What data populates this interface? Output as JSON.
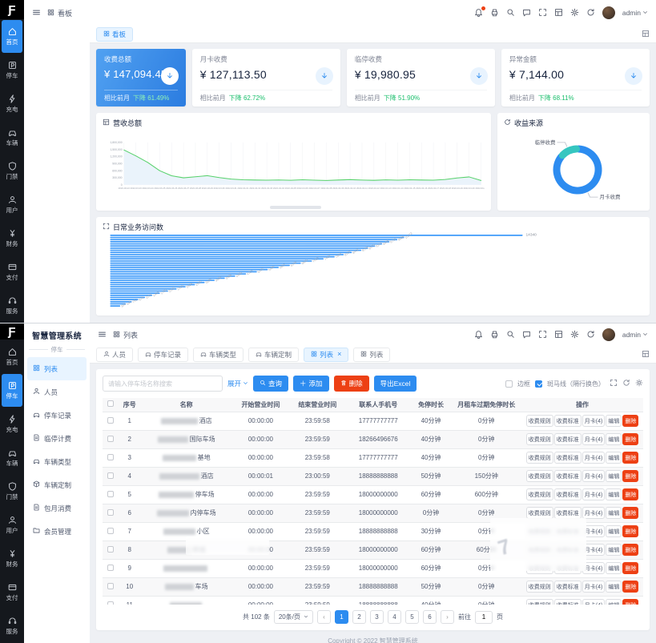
{
  "brand": {
    "logo_glyph": "Ƒ",
    "accent": "#2d8cf0",
    "danger": "#ed4014",
    "success": "#19be6b"
  },
  "rail": {
    "items": [
      {
        "icon": "home",
        "label": "首页"
      },
      {
        "icon": "parking",
        "label": "停车"
      },
      {
        "icon": "bolt",
        "label": "充电"
      },
      {
        "icon": "car",
        "label": "车辆"
      },
      {
        "icon": "shield",
        "label": "门禁"
      },
      {
        "icon": "user",
        "label": "用户"
      },
      {
        "icon": "yen",
        "label": "财务"
      },
      {
        "icon": "card",
        "label": "支付"
      },
      {
        "icon": "headset",
        "label": "服务"
      }
    ]
  },
  "topbar_icons": [
    "bell",
    "printer",
    "search",
    "message",
    "expand",
    "layout",
    "gear",
    "refresh"
  ],
  "user": {
    "name": "admin"
  },
  "top_view": {
    "breadcrumb": "看板",
    "tab": "看板",
    "cards": [
      {
        "title": "收费总额",
        "value": "¥ 147,094.45",
        "compare": "相比前月",
        "trend": "下降 61.49%",
        "highlight": true
      },
      {
        "title": "月卡收费",
        "value": "¥ 127,113.50",
        "compare": "相比前月",
        "trend": "下降 62.72%",
        "highlight": false
      },
      {
        "title": "临停收费",
        "value": "¥ 19,980.95",
        "compare": "相比前月",
        "trend": "下降 51.90%",
        "highlight": false
      },
      {
        "title": "异常金额",
        "value": "¥ 7,144.00",
        "compare": "相比前月",
        "trend": "下降 68.11%",
        "highlight": false
      }
    ],
    "line_panel_title": "营收总额",
    "donut_panel_title": "收益来源",
    "bar_panel_title": "日常业务访问数"
  },
  "chart_data": [
    {
      "type": "line",
      "title": "营收总额",
      "x": [
        "2022-03-22",
        "2022-03-23",
        "2022-03-24",
        "2022-03-25",
        "2022-03-26",
        "2022-03-27",
        "2022-03-28",
        "2022-03-29",
        "2022-03-30",
        "2022-03-31",
        "2022-04-01",
        "2022-04-02",
        "2022-04-03",
        "2022-04-04",
        "2022-04-05",
        "2022-04-06",
        "2022-04-07",
        "2022-04-08",
        "2022-04-09",
        "2022-04-10",
        "2022-04-11",
        "2022-04-12",
        "2022-04-13",
        "2022-04-14",
        "2022-04-15",
        "2022-04-16",
        "2022-04-17",
        "2022-04-18",
        "2022-04-19",
        "2022-04-20",
        "2022-04-21"
      ],
      "values": [
        1480000,
        1230000,
        950000,
        600000,
        385000,
        300000,
        345000,
        390000,
        310000,
        245000,
        215000,
        205000,
        198000,
        208000,
        195000,
        215000,
        200000,
        188000,
        206000,
        224000,
        204000,
        192000,
        212000,
        198000,
        216000,
        206000,
        198000,
        228000,
        292000,
        338000,
        185000
      ],
      "ylim": [
        0,
        1800000
      ],
      "yticks": [
        0,
        300000,
        600000,
        900000,
        1200000,
        1500000,
        1800000
      ],
      "line_color": "#57d16b",
      "area_color": "#eaf3fb",
      "grid": "vertical"
    },
    {
      "type": "pie",
      "title": "收益来源",
      "slices": [
        {
          "label": "月卡收费",
          "value": 127113.5,
          "color": "#2d8cf0"
        },
        {
          "label": "临停收费",
          "value": 19980.95,
          "color": "#36c6c0"
        }
      ],
      "donut": true,
      "legend_position": "callout-labels"
    },
    {
      "type": "bar",
      "orientation": "horizontal",
      "title": "日常业务访问数",
      "values": [
        14340,
        10223,
        9986,
        9712,
        9455,
        9214,
        8970,
        8733,
        8402,
        8120,
        7804,
        7420,
        7015,
        6630,
        6248,
        5861,
        5480,
        5102,
        4725,
        4350,
        3988,
        3630,
        3285,
        2950,
        2624,
        2310,
        2012,
        1730,
        1465,
        1212,
        975,
        752,
        545,
        352
      ],
      "bar_color": "#3f9bfa",
      "value_labels": "rotated-at-bar-end",
      "xlabel": "",
      "ylabel": ""
    }
  ],
  "bottom_view": {
    "app_title": "智慧管理系统",
    "module": "停车",
    "menu": [
      {
        "icon": "grid",
        "label": "列表",
        "active": true
      },
      {
        "icon": "user",
        "label": "人员",
        "active": false
      },
      {
        "icon": "car",
        "label": "停车记录",
        "active": false
      },
      {
        "icon": "file",
        "label": "临停计费",
        "active": false
      },
      {
        "icon": "car",
        "label": "车辆类型",
        "active": false
      },
      {
        "icon": "box",
        "label": "车辆定制",
        "active": false
      },
      {
        "icon": "file",
        "label": "包月消费",
        "active": false
      },
      {
        "icon": "folder",
        "label": "会员管理",
        "active": false
      }
    ],
    "breadcrumb": "列表",
    "tabs": [
      {
        "icon": "user",
        "label": "人员",
        "active": false,
        "closable": false
      },
      {
        "icon": "car",
        "label": "停车记录",
        "active": false,
        "closable": false
      },
      {
        "icon": "car",
        "label": "车辆类型",
        "active": false,
        "closable": false
      },
      {
        "icon": "car",
        "label": "车辆定制",
        "active": false,
        "closable": false
      },
      {
        "icon": "grid",
        "label": "列表",
        "active": true,
        "closable": true
      },
      {
        "icon": "grid",
        "label": "列表",
        "active": false,
        "closable": false
      }
    ],
    "toolbar": {
      "search_placeholder": "请输入停车场名称搜索",
      "expand_label": "展开",
      "query_label": "查询",
      "add_label": "添加",
      "delete_label": "删除",
      "export_label": "导出Excel",
      "border_label": "边框",
      "stripe_label": "斑马线（隔行换色）"
    },
    "table": {
      "columns": [
        "序号",
        "名称",
        "开始营业时间",
        "结束营业时间",
        "联系人手机号",
        "免停时长",
        "月租车过期免停时长",
        "操作"
      ],
      "row_actions": [
        "收费规则",
        "收费标准",
        "月卡(4)",
        "编辑"
      ],
      "delete_action": "删除",
      "rows": [
        {
          "no": "1",
          "name_suffix": "酒店",
          "blur_w": 46,
          "open": "00:00:00",
          "close": "23:59:58",
          "phone": "17777777777",
          "free": "40分钟",
          "monthly_free": "0分钟"
        },
        {
          "no": "2",
          "name_suffix": "国际车场",
          "blur_w": 38,
          "open": "00:00:00",
          "close": "23:59:59",
          "phone": "18266496676",
          "free": "40分钟",
          "monthly_free": "0分钟"
        },
        {
          "no": "3",
          "name_suffix": "基地",
          "blur_w": 42,
          "open": "00:00:00",
          "close": "23:59:58",
          "phone": "17777777777",
          "free": "40分钟",
          "monthly_free": "0分钟"
        },
        {
          "no": "4",
          "name_suffix": "酒店",
          "blur_w": 50,
          "open": "00:00:01",
          "close": "23:00:59",
          "phone": "18888888888",
          "free": "50分钟",
          "monthly_free": "150分钟"
        },
        {
          "no": "5",
          "name_suffix": "停车场",
          "blur_w": 44,
          "open": "00:00:00",
          "close": "23:59:59",
          "phone": "18000000000",
          "free": "60分钟",
          "monthly_free": "600分钟"
        },
        {
          "no": "6",
          "name_suffix": "内停车场",
          "blur_w": 40,
          "open": "00:00:00",
          "close": "23:59:59",
          "phone": "18000000000",
          "free": "0分钟",
          "monthly_free": "0分钟"
        },
        {
          "no": "7",
          "name_suffix": "小区",
          "blur_w": 40,
          "open": "00:00:00",
          "close": "23:59:59",
          "phone": "18888888888",
          "free": "30分钟",
          "monthly_free": "0分钟"
        },
        {
          "no": "8",
          "name_suffix": "新城",
          "blur_w": 30,
          "open": "00:00:00",
          "close": "23:59:59",
          "phone": "18000000000",
          "free": "60分钟",
          "monthly_free": "60分钟"
        },
        {
          "no": "9",
          "name_suffix": "",
          "blur_w": 55,
          "open": "00:00:00",
          "close": "23:59:59",
          "phone": "18000000000",
          "free": "60分钟",
          "monthly_free": "0分钟"
        },
        {
          "no": "10",
          "name_suffix": "车场",
          "blur_w": 36,
          "open": "00:00:00",
          "close": "23:59:59",
          "phone": "18888888888",
          "free": "50分钟",
          "monthly_free": "0分钟"
        },
        {
          "no": "11",
          "name_suffix": "",
          "blur_w": 40,
          "open": "00:00:00",
          "close": "23:59:59",
          "phone": "18888888888",
          "free": "40分钟",
          "monthly_free": "0分钟"
        }
      ]
    },
    "pagination": {
      "total_label": "共 102 条",
      "page_size_label": "20条/页",
      "pages": [
        "1",
        "2",
        "3",
        "4",
        "5",
        "6"
      ],
      "active_page": "1",
      "goto_label": "前往",
      "goto_value": "1",
      "page_word": "页"
    },
    "footer": "Copyright © 2022 智慧管理系统"
  }
}
